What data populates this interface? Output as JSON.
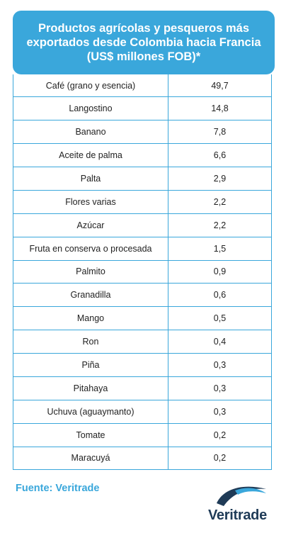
{
  "chart_data": {
    "type": "table",
    "title": "Productos agrícolas y pesqueros más exportados desde Colombia hacia Francia (US$ millones FOB)*",
    "rows": [
      {
        "product": "Café (grano y esencia)",
        "value": "49,7"
      },
      {
        "product": "Langostino",
        "value": "14,8"
      },
      {
        "product": "Banano",
        "value": "7,8"
      },
      {
        "product": "Aceite de palma",
        "value": "6,6"
      },
      {
        "product": "Palta",
        "value": "2,9"
      },
      {
        "product": "Flores varias",
        "value": "2,2"
      },
      {
        "product": "Azúcar",
        "value": "2,2"
      },
      {
        "product": "Fruta en conserva o procesada",
        "value": "1,5"
      },
      {
        "product": "Palmito",
        "value": "0,9"
      },
      {
        "product": "Granadilla",
        "value": "0,6"
      },
      {
        "product": "Mango",
        "value": "0,5"
      },
      {
        "product": "Ron",
        "value": "0,4"
      },
      {
        "product": "Piña",
        "value": "0,3"
      },
      {
        "product": "Pitahaya",
        "value": "0,3"
      },
      {
        "product": "Uchuva (aguaymanto)",
        "value": "0,3"
      },
      {
        "product": "Tomate",
        "value": "0,2"
      },
      {
        "product": "Maracuyá",
        "value": "0,2"
      }
    ]
  },
  "source": "Fuente: Veritrade",
  "logo": {
    "text": "Veritrade",
    "icon": "veritrade-swoosh-logo"
  },
  "colors": {
    "accent": "#3aa7db",
    "text": "#222222",
    "logo_dark": "#1f3b57"
  }
}
